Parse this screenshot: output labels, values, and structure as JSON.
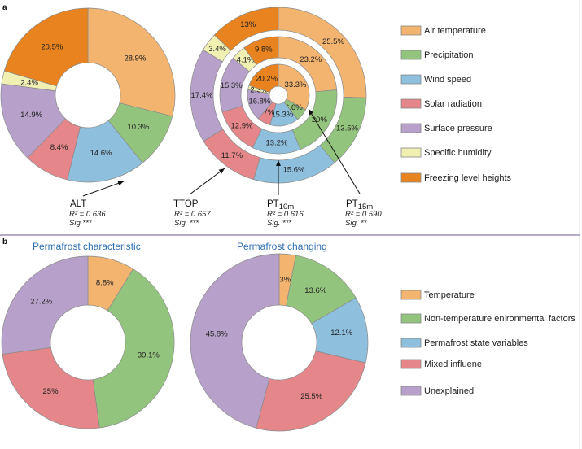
{
  "panel_labels": {
    "a": "a",
    "b": "b"
  },
  "colors": {
    "air_temperature": "#f3b46f",
    "precipitation": "#93c47d",
    "wind_speed": "#8ebfdd",
    "solar_radiation": "#e5878a",
    "surface_pressure": "#b7a0c9",
    "specific_humidity": "#f1f0b3",
    "freezing_level_heights": "#e8831f",
    "temperature": "#f3b46f",
    "non_temperature": "#93c47d",
    "permafrost_state": "#8ebfdd",
    "mixed": "#e5878a",
    "unexplained": "#b7a0c9",
    "title_blue": "#2e6fb5",
    "divider": "#8a7aa8"
  },
  "chart_data": [
    {
      "type": "pie",
      "panel": "a",
      "legend": [
        "Air temperature",
        "Precipitation",
        "Wind speed",
        "Solar radiation",
        "Surface pressure",
        "Specific humidity",
        "Freezing level heights"
      ],
      "legend_keys": [
        "air_temperature",
        "precipitation",
        "wind_speed",
        "solar_radiation",
        "surface_pressure",
        "specific_humidity",
        "freezing_level_heights"
      ],
      "legend_placement": "right",
      "series": [
        {
          "name": "ALT",
          "r2": "R² = 0.636",
          "sig": "Sig ***",
          "values": [
            28.9,
            10.3,
            14.6,
            8.4,
            14.9,
            2.4,
            20.5
          ],
          "labels": [
            "28.9%",
            "10.3%",
            "14.6%",
            "8.4%",
            "14.9%",
            "2.4%",
            "20.5%"
          ]
        },
        {
          "name": "TTOP",
          "r2": "R² = 0.657",
          "sig": "Sig. ***",
          "values": [
            25.5,
            13.5,
            15.6,
            11.7,
            17.4,
            3.4,
            13
          ],
          "labels": [
            "25.5%",
            "13.5%",
            "15.6%",
            "11.7%",
            "17.4%",
            "3.4%",
            "13%"
          ]
        },
        {
          "name": "PT",
          "sub": "10m",
          "r2": "R² = 0.616",
          "sig": "Sig. ***",
          "values": [
            23.2,
            20,
            13.2,
            12.9,
            15.3,
            4.1,
            9.8
          ],
          "labels": [
            "23.2%",
            "20%",
            "13.2%",
            "12.9%",
            "15.3%",
            "4.1%",
            "9.8%"
          ]
        },
        {
          "name": "PT",
          "sub": "15m",
          "r2": "R² = 0.590",
          "sig": "Sig. **",
          "values": [
            33.3,
            6.6,
            15.3,
            7,
            16.8,
            2.3,
            20.2
          ],
          "labels": [
            "33.3%",
            "6.6%",
            "15.3%",
            "7%",
            "16.8%",
            "2.3%",
            "20.2%"
          ]
        }
      ]
    },
    {
      "type": "pie",
      "panel": "b",
      "legend": [
        "Temperature",
        "Non-temperature enironmental factors",
        "Permafrost state variables",
        "Mixed influene",
        "Unexplained"
      ],
      "legend_keys": [
        "temperature",
        "non_temperature",
        "permafrost_state",
        "mixed",
        "unexplained"
      ],
      "legend_placement": "right",
      "series": [
        {
          "title": "Permafrost characteristic",
          "keys": [
            "temperature",
            "non_temperature",
            "mixed",
            "unexplained"
          ],
          "values": [
            8.8,
            39.1,
            25,
            27.2
          ],
          "labels": [
            "8.8%",
            "39.1%",
            "25%",
            "27.2%"
          ]
        },
        {
          "title": "Permafrost changing",
          "keys": [
            "temperature",
            "non_temperature",
            "permafrost_state",
            "mixed",
            "unexplained"
          ],
          "values": [
            3,
            13.6,
            12.1,
            25.5,
            45.8
          ],
          "labels": [
            "3%",
            "13.6%",
            "12.1%",
            "25.5%",
            "45.8%"
          ]
        }
      ]
    }
  ]
}
